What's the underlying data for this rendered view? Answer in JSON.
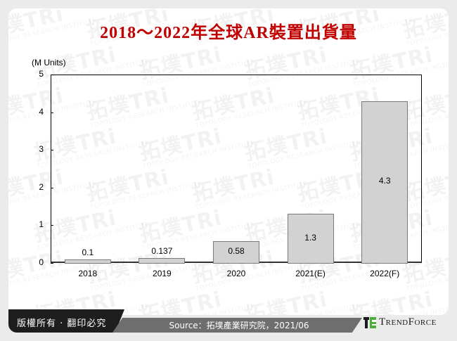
{
  "title": "2018～2022年全球AR裝置出貨量",
  "chart_data": {
    "type": "bar",
    "title": "2018～2022年全球AR裝置出貨量",
    "xlabel": "",
    "ylabel": "(M Units)",
    "ylim": [
      0,
      5
    ],
    "yticks": [
      0,
      1,
      2,
      3,
      4,
      5
    ],
    "categories": [
      "2018",
      "2019",
      "2020",
      "2021(E)",
      "2022(F)"
    ],
    "values": [
      0.1,
      0.137,
      0.58,
      1.3,
      4.3
    ],
    "value_labels": [
      "0.1",
      "0.137",
      "0.58",
      "1.3",
      "4.3"
    ],
    "grid": false,
    "legend": null,
    "bar_color": "#d2d2d2",
    "bar_edge_color": "#7a7a7a"
  },
  "axis": {
    "unit_label": "(M Units)",
    "yticks": [
      "0",
      "1",
      "2",
      "3",
      "4",
      "5"
    ]
  },
  "footer": {
    "copyright": "版權所有 · 翻印必究",
    "source": "Source：拓墣產業研究院，2021/06",
    "brand": "TrendForce"
  },
  "watermark": {
    "text": "拓墣TRi",
    "subtext": "TOPOLOGY RESEARCH INSTITUTE"
  },
  "colors": {
    "title": "#c00000",
    "footer_dark": "#1e1e1e",
    "footer_mid": "#6e6e6e",
    "brand_green": "#4caf3a"
  }
}
